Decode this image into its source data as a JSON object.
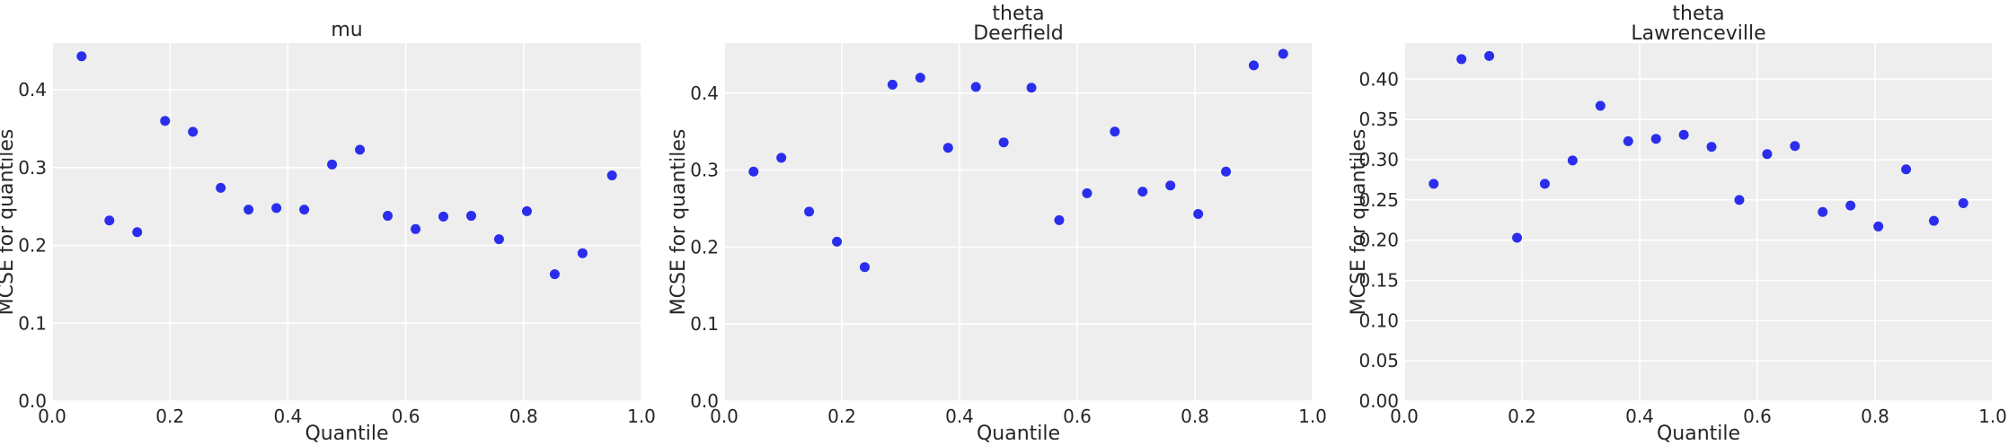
{
  "figure": {
    "point_color": "#2a2eec",
    "background": "#eeeeee",
    "grid_color": "#ffffff"
  },
  "chart_data": [
    {
      "type": "scatter",
      "title_lines": [
        "mu"
      ],
      "xlabel": "Quantile",
      "ylabel": "MCSE for quantiles",
      "xlim": [
        0.0,
        1.0
      ],
      "ylim": [
        0.0,
        0.46
      ],
      "x_ticks": [
        "0.0",
        "0.2",
        "0.4",
        "0.6",
        "0.8",
        "1.0"
      ],
      "y_ticks": [
        "0.0",
        "0.1",
        "0.2",
        "0.3",
        "0.4"
      ],
      "grid": true,
      "x": [
        0.05,
        0.0972,
        0.1444,
        0.1917,
        0.2389,
        0.2861,
        0.3333,
        0.3806,
        0.4278,
        0.475,
        0.5222,
        0.5694,
        0.6167,
        0.6639,
        0.7111,
        0.7583,
        0.8056,
        0.8528,
        0.9,
        0.95
      ],
      "y": [
        0.443,
        0.232,
        0.217,
        0.36,
        0.346,
        0.274,
        0.246,
        0.248,
        0.246,
        0.304,
        0.323,
        0.238,
        0.221,
        0.237,
        0.238,
        0.208,
        0.244,
        0.163,
        0.19,
        0.29
      ]
    },
    {
      "type": "scatter",
      "title_lines": [
        "theta",
        "Deerfield"
      ],
      "xlabel": "Quantile",
      "ylabel": "MCSE for quantiles",
      "xlim": [
        0.0,
        1.0
      ],
      "ylim": [
        0.0,
        0.465
      ],
      "x_ticks": [
        "0.0",
        "0.2",
        "0.4",
        "0.6",
        "0.8",
        "1.0"
      ],
      "y_ticks": [
        "0.0",
        "0.1",
        "0.2",
        "0.3",
        "0.4"
      ],
      "grid": true,
      "x": [
        0.05,
        0.0972,
        0.1444,
        0.1917,
        0.2389,
        0.2861,
        0.3333,
        0.3806,
        0.4278,
        0.475,
        0.5222,
        0.5694,
        0.6167,
        0.6639,
        0.7111,
        0.7583,
        0.8056,
        0.8528,
        0.9,
        0.95
      ],
      "y": [
        0.298,
        0.316,
        0.246,
        0.207,
        0.174,
        0.411,
        0.42,
        0.329,
        0.408,
        0.336,
        0.407,
        0.235,
        0.27,
        0.35,
        0.272,
        0.28,
        0.243,
        0.298,
        0.436,
        0.451
      ]
    },
    {
      "type": "scatter",
      "title_lines": [
        "theta",
        "Lawrenceville"
      ],
      "xlabel": "Quantile",
      "ylabel": "MCSE for quantiles",
      "xlim": [
        0.0,
        1.0
      ],
      "ylim": [
        0.0,
        0.445
      ],
      "x_ticks": [
        "0.0",
        "0.2",
        "0.4",
        "0.6",
        "0.8",
        "1.0"
      ],
      "y_ticks": [
        "0.00",
        "0.05",
        "0.10",
        "0.15",
        "0.20",
        "0.25",
        "0.30",
        "0.35",
        "0.40"
      ],
      "grid": true,
      "x": [
        0.05,
        0.0972,
        0.1444,
        0.1917,
        0.2389,
        0.2861,
        0.3333,
        0.3806,
        0.4278,
        0.475,
        0.5222,
        0.5694,
        0.6167,
        0.6639,
        0.7111,
        0.7583,
        0.8056,
        0.8528,
        0.9,
        0.95
      ],
      "y": [
        0.27,
        0.425,
        0.429,
        0.203,
        0.27,
        0.299,
        0.367,
        0.323,
        0.326,
        0.331,
        0.316,
        0.25,
        0.307,
        0.317,
        0.235,
        0.243,
        0.217,
        0.288,
        0.224,
        0.246
      ]
    }
  ]
}
